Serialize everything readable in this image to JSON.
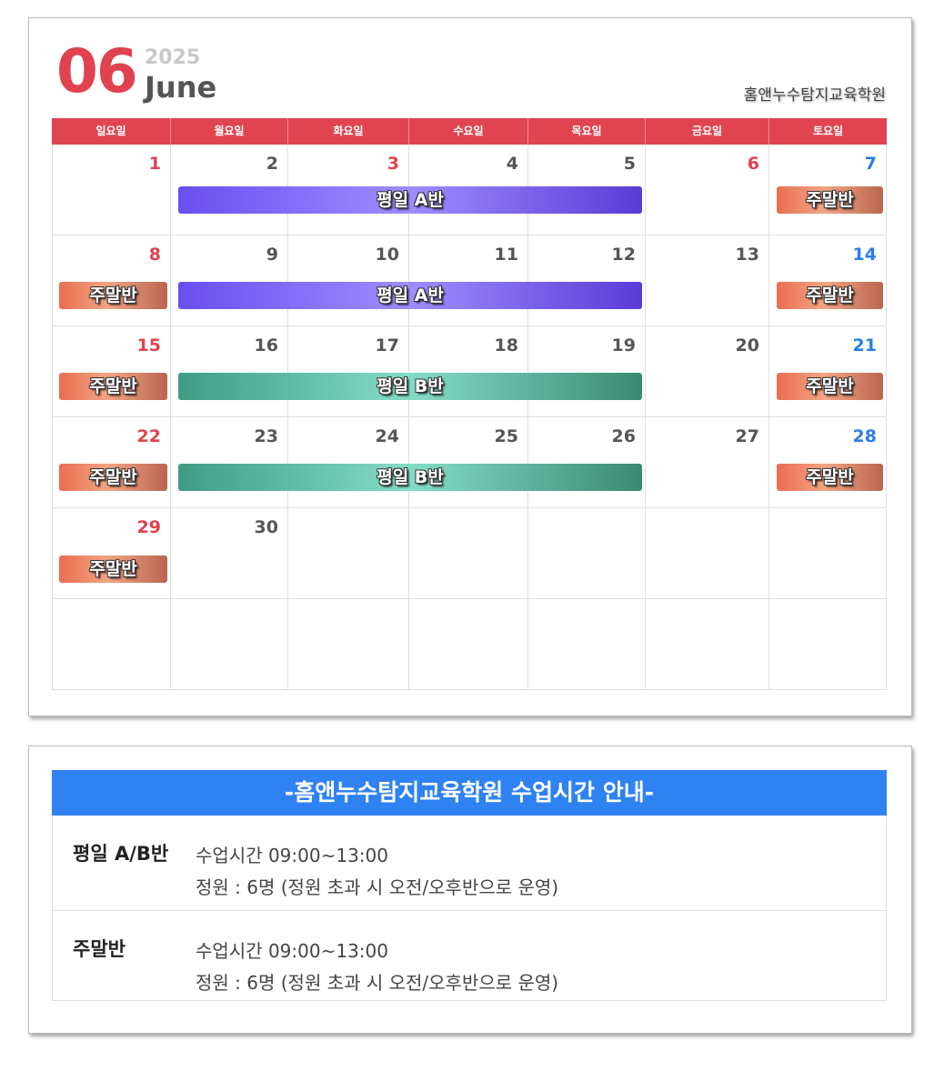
{
  "calendar": {
    "month_number": "06",
    "year": "2025",
    "month_name": "June",
    "academy_name": "홈앤누수탐지교육학원",
    "weekdays": [
      "일요일",
      "월요일",
      "화요일",
      "수요일",
      "목요일",
      "금요일",
      "토요일"
    ],
    "weeks": [
      [
        "1",
        "2",
        "3",
        "4",
        "5",
        "6",
        "7"
      ],
      [
        "8",
        "9",
        "10",
        "11",
        "12",
        "13",
        "14"
      ],
      [
        "15",
        "16",
        "17",
        "18",
        "19",
        "20",
        "21"
      ],
      [
        "22",
        "23",
        "24",
        "25",
        "26",
        "27",
        "28"
      ],
      [
        "29",
        "30",
        "",
        "",
        "",
        "",
        ""
      ],
      [
        "",
        "",
        "",
        "",
        "",
        "",
        ""
      ]
    ],
    "red_dates": [
      "1",
      "3",
      "6",
      "8",
      "15",
      "22",
      "29"
    ],
    "blue_dates": [
      "7",
      "14",
      "21",
      "28"
    ],
    "events": {
      "weekday_a_label": "평일 A반",
      "weekday_b_label": "평일 B반",
      "weekend_label": "주말반"
    },
    "colors": {
      "header_red": "#e0454f",
      "sunday_red": "#e0424e",
      "saturday_blue": "#2b7de9",
      "class_a_purple": "#7a5cf5",
      "class_b_teal": "#5fbfa5",
      "weekend_orange": "#ee8a66"
    }
  },
  "info": {
    "title": "-홈앤누수탐지교육학원 수업시간 안내-",
    "rows": [
      {
        "label": "평일 A/B반",
        "line1": "수업시간 09:00~13:00",
        "line2": "정원 : 6명 (정원 초과 시 오전/오후반으로 운영)"
      },
      {
        "label": "주말반",
        "line1": "수업시간 09:00~13:00",
        "line2": "정원 : 6명 (정원 초과 시 오전/오후반으로 운영)"
      }
    ],
    "title_color": "#2e82f2"
  }
}
